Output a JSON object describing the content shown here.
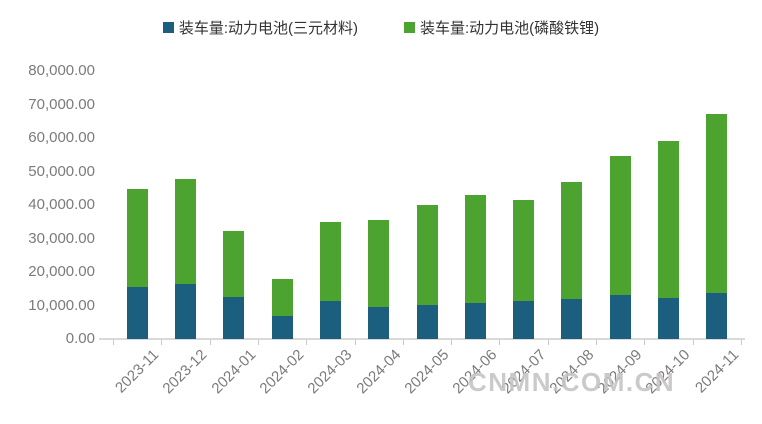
{
  "legend": {
    "items": [
      {
        "label": "装车量:动力电池(三元材料)",
        "color": "#1B5E7D"
      },
      {
        "label": "装车量:动力电池(磷酸铁锂)",
        "color": "#4DA32F"
      }
    ]
  },
  "watermark": "CNMN.COM.CN",
  "y_axis": {
    "tick_labels": [
      "0.00",
      "10,000.00",
      "20,000.00",
      "30,000.00",
      "40,000.00",
      "50,000.00",
      "60,000.00",
      "70,000.00",
      "80,000.00"
    ]
  },
  "chart_data": {
    "type": "bar",
    "stacked": true,
    "title": "",
    "xlabel": "",
    "ylabel": "",
    "categories": [
      "2023-11",
      "2023-12",
      "2024-01",
      "2024-02",
      "2024-03",
      "2024-04",
      "2024-05",
      "2024-06",
      "2024-07",
      "2024-08",
      "2024-09",
      "2024-10",
      "2024-11"
    ],
    "series": [
      {
        "name": "装车量:动力电池(三元材料)",
        "color": "#1B5E7D",
        "values": [
          15600,
          16500,
          12400,
          6800,
          11200,
          9500,
          10200,
          10700,
          11300,
          12000,
          13000,
          12300,
          13800
        ]
      },
      {
        "name": "装车量:动力电池(磷酸铁锂)",
        "color": "#4DA32F",
        "values": [
          29300,
          31400,
          19900,
          11100,
          23600,
          26000,
          29700,
          32200,
          30300,
          35000,
          41500,
          46900,
          53500
        ]
      }
    ],
    "totals": [
      44900,
      47900,
      32300,
      17900,
      34800,
      35500,
      39900,
      42900,
      41600,
      47000,
      54500,
      59200,
      67300
    ],
    "ylim": [
      0,
      80000
    ],
    "ytick_step": 10000,
    "grid": false,
    "legend_position": "top"
  }
}
